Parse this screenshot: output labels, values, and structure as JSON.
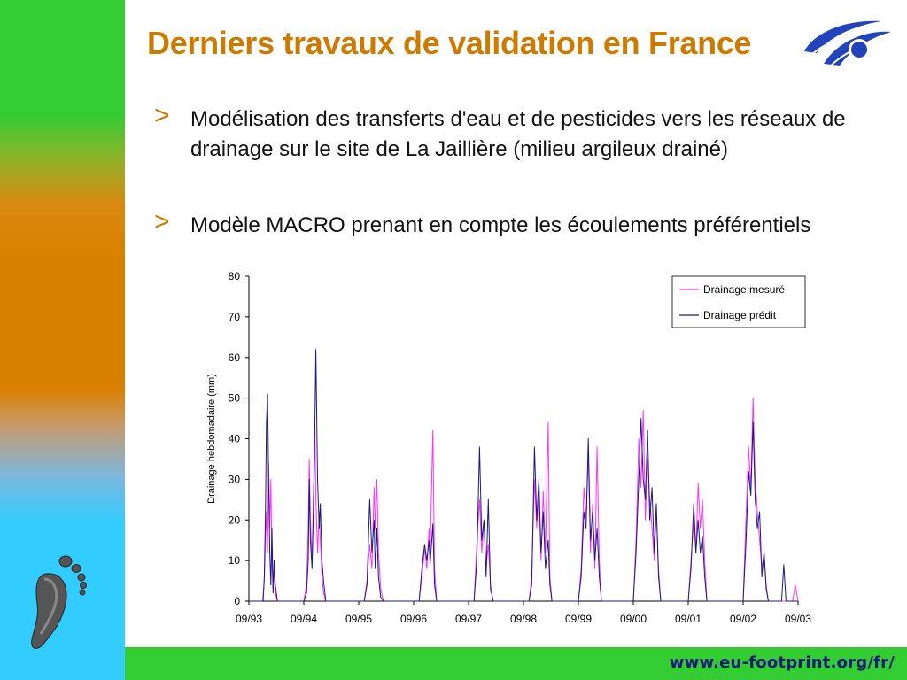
{
  "slide": {
    "title": "Derniers travaux de validation en France",
    "bullets": [
      {
        "marker": ">",
        "text": "Modélisation des transferts d'eau et de pesticides vers les réseaux de drainage sur le site de La Jaillière (milieu argileux drainé)"
      },
      {
        "marker": ">",
        "text": "Modèle MACRO prenant en compte les écoulements préférentiels"
      }
    ],
    "footer_url": "www.eu-footprint.org/fr/"
  },
  "colors": {
    "title": "#cc7a00",
    "accent_orange": "#d98000",
    "sidebar_green": "#33cc33",
    "sidebar_cyan": "#33ccff",
    "footer_text": "#1a1a7a",
    "series_measured": "#ff33ff",
    "series_predicted": "#1a1a80"
  },
  "icons": {
    "logo": "eu-logo-icon",
    "footprint": "footprint-icon"
  },
  "chart_data": {
    "type": "line",
    "title": "",
    "xlabel": "",
    "ylabel": "Drainage hebdomadaire (mm)",
    "ylim": [
      0,
      80
    ],
    "yticks": [
      0,
      10,
      20,
      30,
      40,
      50,
      60,
      70,
      80
    ],
    "xlim": [
      0,
      10
    ],
    "xticks": [
      {
        "x": 0,
        "label": "09/93"
      },
      {
        "x": 1,
        "label": "09/94"
      },
      {
        "x": 2,
        "label": "09/95"
      },
      {
        "x": 3,
        "label": "09/96"
      },
      {
        "x": 4,
        "label": "09/97"
      },
      {
        "x": 5,
        "label": "09/98"
      },
      {
        "x": 6,
        "label": "09/99"
      },
      {
        "x": 7,
        "label": "09/00"
      },
      {
        "x": 8,
        "label": "09/01"
      },
      {
        "x": 9,
        "label": "09/02"
      },
      {
        "x": 10,
        "label": "09/03"
      }
    ],
    "x_unit": "years since 09/93",
    "grid": false,
    "legend_position": "top-right",
    "series": [
      {
        "name": "Drainage mesuré",
        "color": "#ff33ff",
        "points": [
          [
            0,
            0
          ],
          [
            0.25,
            0
          ],
          [
            0.28,
            5
          ],
          [
            0.3,
            14
          ],
          [
            0.32,
            22
          ],
          [
            0.34,
            12
          ],
          [
            0.36,
            34
          ],
          [
            0.38,
            18
          ],
          [
            0.4,
            30
          ],
          [
            0.42,
            10
          ],
          [
            0.44,
            3
          ],
          [
            0.46,
            8
          ],
          [
            0.48,
            2
          ],
          [
            0.52,
            0
          ],
          [
            1,
            0
          ],
          [
            1.05,
            4
          ],
          [
            1.08,
            18
          ],
          [
            1.1,
            35
          ],
          [
            1.12,
            20
          ],
          [
            1.15,
            10
          ],
          [
            1.18,
            30
          ],
          [
            1.2,
            45
          ],
          [
            1.22,
            25
          ],
          [
            1.25,
            12
          ],
          [
            1.28,
            22
          ],
          [
            1.3,
            15
          ],
          [
            1.33,
            6
          ],
          [
            1.36,
            2
          ],
          [
            1.4,
            0
          ],
          [
            2,
            0
          ],
          [
            2.1,
            0
          ],
          [
            2.15,
            5
          ],
          [
            2.2,
            14
          ],
          [
            2.24,
            8
          ],
          [
            2.28,
            28
          ],
          [
            2.3,
            18
          ],
          [
            2.33,
            30
          ],
          [
            2.36,
            12
          ],
          [
            2.4,
            3
          ],
          [
            2.45,
            0
          ],
          [
            3,
            0
          ],
          [
            3.1,
            0
          ],
          [
            3.15,
            6
          ],
          [
            3.2,
            13
          ],
          [
            3.24,
            8
          ],
          [
            3.28,
            18
          ],
          [
            3.3,
            12
          ],
          [
            3.35,
            42
          ],
          [
            3.38,
            8
          ],
          [
            3.42,
            0
          ],
          [
            4,
            0
          ],
          [
            4.1,
            0
          ],
          [
            4.15,
            14
          ],
          [
            4.2,
            25
          ],
          [
            4.24,
            12
          ],
          [
            4.28,
            20
          ],
          [
            4.32,
            8
          ],
          [
            4.36,
            14
          ],
          [
            4.4,
            4
          ],
          [
            4.45,
            0
          ],
          [
            5,
            0
          ],
          [
            5.1,
            0
          ],
          [
            5.15,
            6
          ],
          [
            5.2,
            30
          ],
          [
            5.24,
            18
          ],
          [
            5.28,
            26
          ],
          [
            5.32,
            10
          ],
          [
            5.36,
            27
          ],
          [
            5.4,
            12
          ],
          [
            5.45,
            44
          ],
          [
            5.48,
            6
          ],
          [
            5.52,
            0
          ],
          [
            6,
            0
          ],
          [
            6.05,
            8
          ],
          [
            6.1,
            28
          ],
          [
            6.14,
            20
          ],
          [
            6.18,
            36
          ],
          [
            6.22,
            12
          ],
          [
            6.26,
            24
          ],
          [
            6.3,
            8
          ],
          [
            6.34,
            38
          ],
          [
            6.38,
            10
          ],
          [
            6.42,
            0
          ],
          [
            7,
            0
          ],
          [
            7.05,
            15
          ],
          [
            7.1,
            40
          ],
          [
            7.14,
            28
          ],
          [
            7.18,
            47
          ],
          [
            7.22,
            20
          ],
          [
            7.26,
            35
          ],
          [
            7.3,
            25
          ],
          [
            7.34,
            18
          ],
          [
            7.38,
            10
          ],
          [
            7.42,
            22
          ],
          [
            7.46,
            8
          ],
          [
            7.5,
            0
          ],
          [
            8,
            0
          ],
          [
            8.05,
            10
          ],
          [
            8.1,
            20
          ],
          [
            8.14,
            12
          ],
          [
            8.18,
            29
          ],
          [
            8.22,
            18
          ],
          [
            8.26,
            25
          ],
          [
            8.3,
            10
          ],
          [
            8.34,
            0
          ],
          [
            9,
            0
          ],
          [
            9.05,
            20
          ],
          [
            9.1,
            38
          ],
          [
            9.14,
            28
          ],
          [
            9.18,
            50
          ],
          [
            9.22,
            30
          ],
          [
            9.26,
            22
          ],
          [
            9.3,
            15
          ],
          [
            9.34,
            8
          ],
          [
            9.38,
            12
          ],
          [
            9.42,
            4
          ],
          [
            9.46,
            0
          ],
          [
            9.9,
            0
          ],
          [
            9.95,
            4
          ],
          [
            10,
            0
          ]
        ]
      },
      {
        "name": "Drainage prédit",
        "color": "#1a1a80",
        "points": [
          [
            0,
            0
          ],
          [
            0.26,
            0
          ],
          [
            0.28,
            6
          ],
          [
            0.3,
            20
          ],
          [
            0.32,
            44
          ],
          [
            0.34,
            51
          ],
          [
            0.36,
            30
          ],
          [
            0.38,
            12
          ],
          [
            0.4,
            4
          ],
          [
            0.42,
            18
          ],
          [
            0.44,
            2
          ],
          [
            0.46,
            10
          ],
          [
            0.48,
            4
          ],
          [
            0.52,
            0
          ],
          [
            1,
            0
          ],
          [
            1.05,
            2
          ],
          [
            1.08,
            10
          ],
          [
            1.1,
            30
          ],
          [
            1.12,
            15
          ],
          [
            1.15,
            8
          ],
          [
            1.18,
            25
          ],
          [
            1.2,
            42
          ],
          [
            1.22,
            62
          ],
          [
            1.25,
            30
          ],
          [
            1.28,
            18
          ],
          [
            1.3,
            24
          ],
          [
            1.33,
            10
          ],
          [
            1.36,
            5
          ],
          [
            1.4,
            0
          ],
          [
            2,
            0
          ],
          [
            2.1,
            0
          ],
          [
            2.15,
            4
          ],
          [
            2.2,
            25
          ],
          [
            2.24,
            12
          ],
          [
            2.28,
            20
          ],
          [
            2.3,
            8
          ],
          [
            2.33,
            18
          ],
          [
            2.36,
            6
          ],
          [
            2.4,
            1
          ],
          [
            2.45,
            0
          ],
          [
            3,
            0
          ],
          [
            3.1,
            0
          ],
          [
            3.15,
            8
          ],
          [
            3.2,
            14
          ],
          [
            3.24,
            10
          ],
          [
            3.28,
            15
          ],
          [
            3.3,
            9
          ],
          [
            3.35,
            19
          ],
          [
            3.38,
            4
          ],
          [
            3.42,
            0
          ],
          [
            4,
            0
          ],
          [
            4.1,
            0
          ],
          [
            4.15,
            10
          ],
          [
            4.2,
            38
          ],
          [
            4.24,
            15
          ],
          [
            4.28,
            20
          ],
          [
            4.32,
            6
          ],
          [
            4.36,
            25
          ],
          [
            4.4,
            3
          ],
          [
            4.45,
            0
          ],
          [
            5,
            0
          ],
          [
            5.1,
            0
          ],
          [
            5.15,
            4
          ],
          [
            5.2,
            38
          ],
          [
            5.24,
            20
          ],
          [
            5.28,
            30
          ],
          [
            5.32,
            12
          ],
          [
            5.36,
            22
          ],
          [
            5.4,
            8
          ],
          [
            5.45,
            15
          ],
          [
            5.48,
            4
          ],
          [
            5.52,
            0
          ],
          [
            6,
            0
          ],
          [
            6.05,
            6
          ],
          [
            6.1,
            22
          ],
          [
            6.14,
            18
          ],
          [
            6.18,
            40
          ],
          [
            6.22,
            15
          ],
          [
            6.26,
            22
          ],
          [
            6.3,
            10
          ],
          [
            6.34,
            18
          ],
          [
            6.38,
            6
          ],
          [
            6.42,
            0
          ],
          [
            7,
            0
          ],
          [
            7.05,
            12
          ],
          [
            7.1,
            30
          ],
          [
            7.14,
            45
          ],
          [
            7.18,
            30
          ],
          [
            7.22,
            25
          ],
          [
            7.26,
            42
          ],
          [
            7.3,
            20
          ],
          [
            7.34,
            28
          ],
          [
            7.38,
            12
          ],
          [
            7.42,
            24
          ],
          [
            7.46,
            6
          ],
          [
            7.5,
            0
          ],
          [
            8,
            0
          ],
          [
            8.05,
            8
          ],
          [
            8.1,
            24
          ],
          [
            8.14,
            12
          ],
          [
            8.18,
            20
          ],
          [
            8.22,
            12
          ],
          [
            8.26,
            16
          ],
          [
            8.3,
            6
          ],
          [
            8.34,
            0
          ],
          [
            9,
            0
          ],
          [
            9.05,
            14
          ],
          [
            9.1,
            32
          ],
          [
            9.14,
            26
          ],
          [
            9.18,
            44
          ],
          [
            9.22,
            25
          ],
          [
            9.26,
            18
          ],
          [
            9.3,
            22
          ],
          [
            9.34,
            6
          ],
          [
            9.38,
            12
          ],
          [
            9.42,
            3
          ],
          [
            9.46,
            0
          ],
          [
            9.7,
            0
          ],
          [
            9.74,
            9
          ],
          [
            9.78,
            0
          ],
          [
            10,
            0
          ]
        ]
      }
    ]
  }
}
